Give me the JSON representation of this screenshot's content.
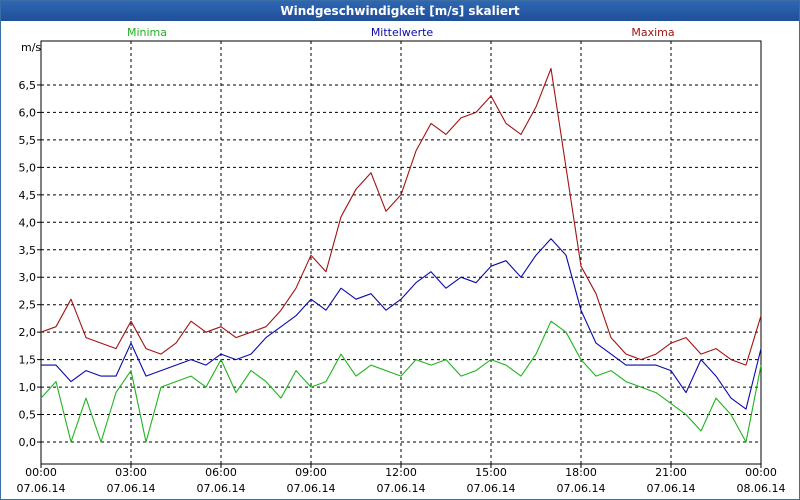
{
  "window": {
    "title": "Windgeschwindigkeit [m/s] skaliert"
  },
  "colors": {
    "minima": "#1fb31f",
    "mittelwerte": "#0a0aa8",
    "maxima": "#a01414",
    "grid": "#000000"
  },
  "chart_data": {
    "type": "line",
    "title": "Windgeschwindigkeit [m/s] skaliert",
    "ylabel": "m/s",
    "xlabel": "",
    "ylim": [
      -0.4,
      7.3
    ],
    "xlim_hours": [
      0,
      24
    ],
    "y_ticks": [
      "0,0",
      "0,5",
      "1,0",
      "1,5",
      "2,0",
      "2,5",
      "3,0",
      "3,5",
      "4,0",
      "4,5",
      "5,0",
      "5,5",
      "6,0",
      "6,5"
    ],
    "x_ticks": [
      {
        "time": "00:00",
        "date": "07.06.14"
      },
      {
        "time": "03:00",
        "date": "07.06.14"
      },
      {
        "time": "06:00",
        "date": "07.06.14"
      },
      {
        "time": "09:00",
        "date": "07.06.14"
      },
      {
        "time": "12:00",
        "date": "07.06.14"
      },
      {
        "time": "15:00",
        "date": "07.06.14"
      },
      {
        "time": "18:00",
        "date": "07.06.14"
      },
      {
        "time": "21:00",
        "date": "07.06.14"
      },
      {
        "time": "00:00",
        "date": "08.06.14"
      }
    ],
    "series": [
      {
        "name": "Minima",
        "hours": [
          0,
          0.5,
          1,
          1.5,
          2,
          2.5,
          3,
          3.5,
          4,
          4.5,
          5,
          5.5,
          6,
          6.5,
          7,
          7.5,
          8,
          8.5,
          9,
          9.5,
          10,
          10.5,
          11,
          11.5,
          12,
          12.5,
          13,
          13.5,
          14,
          14.5,
          15,
          15.5,
          16,
          16.5,
          17,
          17.5,
          18,
          18.5,
          19,
          19.5,
          20,
          20.5,
          21,
          21.5,
          22,
          22.5,
          23,
          23.5,
          24
        ],
        "values": [
          0.8,
          1.1,
          0.0,
          0.8,
          0.0,
          0.9,
          1.3,
          0.0,
          1.0,
          1.1,
          1.2,
          1.0,
          1.5,
          0.9,
          1.3,
          1.1,
          0.8,
          1.3,
          1.0,
          1.1,
          1.6,
          1.2,
          1.4,
          1.3,
          1.2,
          1.5,
          1.4,
          1.5,
          1.2,
          1.3,
          1.5,
          1.4,
          1.2,
          1.6,
          2.2,
          2.0,
          1.5,
          1.2,
          1.3,
          1.1,
          1.0,
          0.9,
          0.7,
          0.5,
          0.2,
          0.8,
          0.5,
          0.0,
          1.4
        ]
      },
      {
        "name": "Mittelwerte",
        "hours": [
          0,
          0.5,
          1,
          1.5,
          2,
          2.5,
          3,
          3.5,
          4,
          4.5,
          5,
          5.5,
          6,
          6.5,
          7,
          7.5,
          8,
          8.5,
          9,
          9.5,
          10,
          10.5,
          11,
          11.5,
          12,
          12.5,
          13,
          13.5,
          14,
          14.5,
          15,
          15.5,
          16,
          16.5,
          17,
          17.5,
          18,
          18.5,
          19,
          19.5,
          20,
          20.5,
          21,
          21.5,
          22,
          22.5,
          23,
          23.5,
          24
        ],
        "values": [
          1.4,
          1.4,
          1.1,
          1.3,
          1.2,
          1.2,
          1.8,
          1.2,
          1.3,
          1.4,
          1.5,
          1.4,
          1.6,
          1.5,
          1.6,
          1.9,
          2.1,
          2.3,
          2.6,
          2.4,
          2.8,
          2.6,
          2.7,
          2.4,
          2.6,
          2.9,
          3.1,
          2.8,
          3.0,
          2.9,
          3.2,
          3.3,
          3.0,
          3.4,
          3.7,
          3.4,
          2.4,
          1.8,
          1.6,
          1.4,
          1.4,
          1.4,
          1.3,
          0.9,
          1.5,
          1.2,
          0.8,
          0.6,
          1.7
        ]
      },
      {
        "name": "Maxima",
        "hours": [
          0,
          0.5,
          1,
          1.5,
          2,
          2.5,
          3,
          3.5,
          4,
          4.5,
          5,
          5.5,
          6,
          6.5,
          7,
          7.5,
          8,
          8.5,
          9,
          9.5,
          10,
          10.5,
          11,
          11.5,
          12,
          12.5,
          13,
          13.5,
          14,
          14.5,
          15,
          15.5,
          16,
          16.5,
          17,
          17.5,
          18,
          18.5,
          19,
          19.5,
          20,
          20.5,
          21,
          21.5,
          22,
          22.5,
          23,
          23.5,
          24
        ],
        "values": [
          2.0,
          2.1,
          2.6,
          1.9,
          1.8,
          1.7,
          2.2,
          1.7,
          1.6,
          1.8,
          2.2,
          2.0,
          2.1,
          1.9,
          2.0,
          2.1,
          2.4,
          2.8,
          3.4,
          3.1,
          4.1,
          4.6,
          4.9,
          4.2,
          4.5,
          5.3,
          5.8,
          5.6,
          5.9,
          6.0,
          6.3,
          5.8,
          5.6,
          6.1,
          6.8,
          5.0,
          3.2,
          2.7,
          1.9,
          1.6,
          1.5,
          1.6,
          1.8,
          1.9,
          1.6,
          1.7,
          1.5,
          1.4,
          2.3
        ]
      }
    ]
  }
}
